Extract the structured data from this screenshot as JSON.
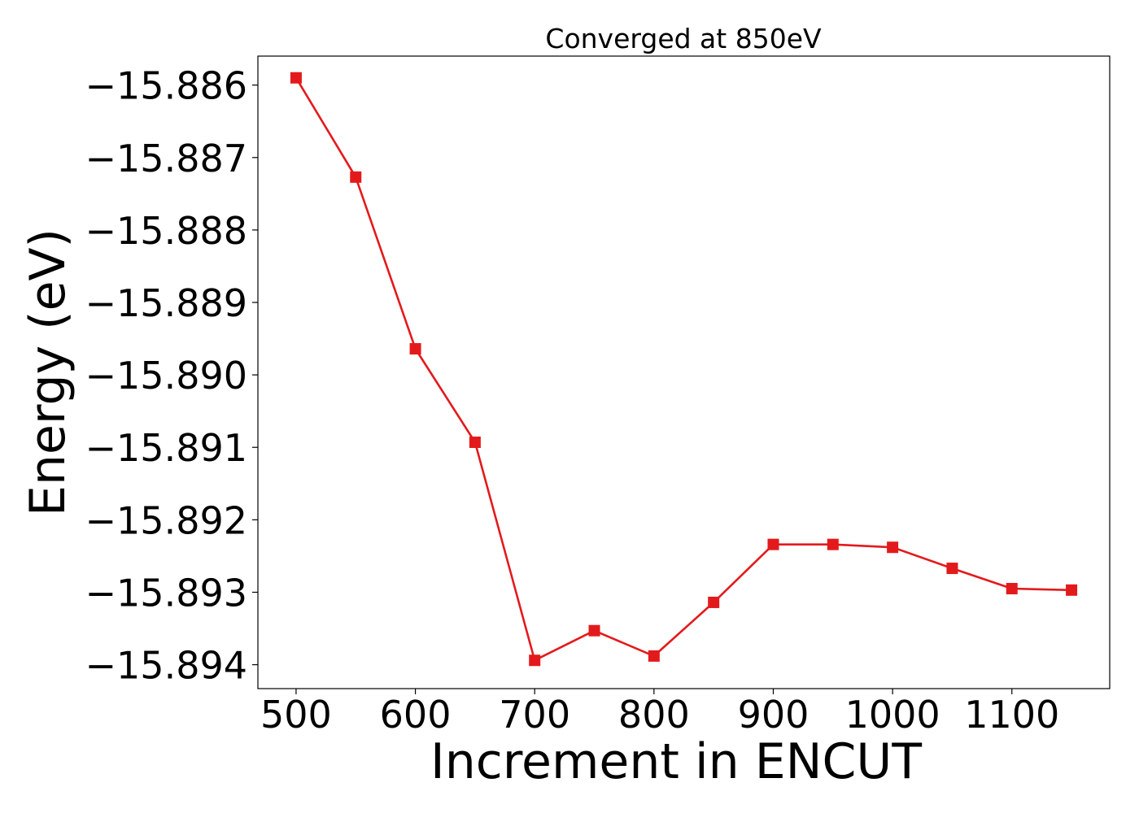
{
  "chart_data": {
    "type": "line",
    "title": "Converged at 850eV",
    "xlabel": "Increment in ENCUT",
    "ylabel": "Energy (eV)",
    "xlim": [
      468,
      1182
    ],
    "ylim": [
      -15.89433,
      -15.8856
    ],
    "xticks": [
      500,
      600,
      700,
      800,
      900,
      1000,
      1100
    ],
    "yticks": [
      -15.886,
      -15.887,
      -15.888,
      -15.889,
      -15.89,
      -15.891,
      -15.892,
      -15.893,
      -15.894
    ],
    "ytick_labels": [
      "−15.886",
      "−15.887",
      "−15.888",
      "−15.889",
      "−15.890",
      "−15.891",
      "−15.892",
      "−15.893",
      "−15.894"
    ],
    "grid": false,
    "series": [
      {
        "color": "#e31a1c",
        "marker": "square",
        "x": [
          500,
          550,
          600,
          650,
          700,
          750,
          800,
          850,
          900,
          950,
          1000,
          1050,
          1100,
          1150
        ],
        "y": [
          -15.8859,
          -15.88727,
          -15.88964,
          -15.89093,
          -15.89394,
          -15.89353,
          -15.89388,
          -15.89314,
          -15.89234,
          -15.89234,
          -15.89238,
          -15.89267,
          -15.89295,
          -15.89297
        ]
      }
    ]
  }
}
